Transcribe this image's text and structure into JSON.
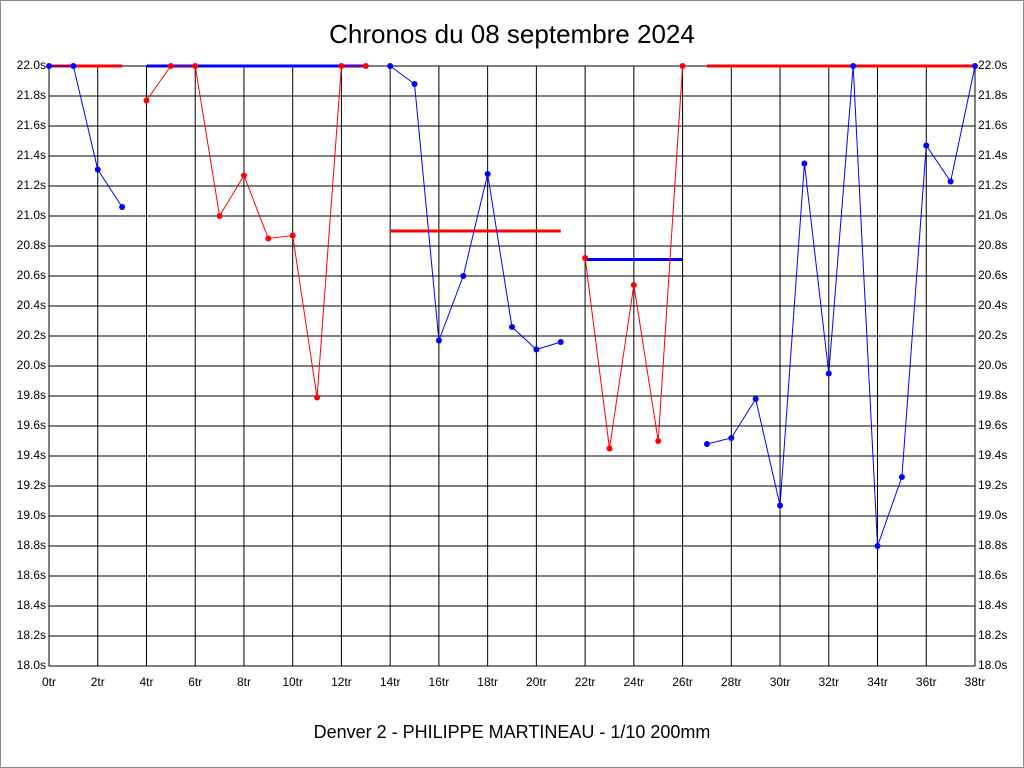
{
  "chart_data": {
    "type": "line",
    "title": "Chronos du 08 septembre 2024",
    "subtitle": "Denver 2 - PHILIPPE MARTINEAU - 1/10 200mm",
    "x": [
      0,
      1,
      2,
      3,
      4,
      5,
      6,
      7,
      8,
      9,
      10,
      11,
      12,
      13,
      14,
      15,
      16,
      17,
      18,
      19,
      20,
      21,
      22,
      23,
      24,
      25,
      26,
      27,
      28,
      29,
      30,
      31,
      32,
      33,
      34,
      35,
      36,
      37,
      38
    ],
    "xlim": [
      0,
      38
    ],
    "xticks": [
      {
        "value": 0,
        "label": "0tr"
      },
      {
        "value": 2,
        "label": "2tr"
      },
      {
        "value": 4,
        "label": "4tr"
      },
      {
        "value": 6,
        "label": "6tr"
      },
      {
        "value": 8,
        "label": "8tr"
      },
      {
        "value": 10,
        "label": "10tr"
      },
      {
        "value": 12,
        "label": "12tr"
      },
      {
        "value": 14,
        "label": "14tr"
      },
      {
        "value": 16,
        "label": "16tr"
      },
      {
        "value": 18,
        "label": "18tr"
      },
      {
        "value": 20,
        "label": "20tr"
      },
      {
        "value": 22,
        "label": "22tr"
      },
      {
        "value": 24,
        "label": "24tr"
      },
      {
        "value": 26,
        "label": "26tr"
      },
      {
        "value": 28,
        "label": "28tr"
      },
      {
        "value": 30,
        "label": "30tr"
      },
      {
        "value": 32,
        "label": "32tr"
      },
      {
        "value": 34,
        "label": "34tr"
      },
      {
        "value": 36,
        "label": "36tr"
      },
      {
        "value": 38,
        "label": "38tr"
      }
    ],
    "ylim": [
      18,
      22
    ],
    "yticks": [
      {
        "value": 18,
        "label": "18.0s"
      },
      {
        "value": 18.2,
        "label": "18.2s"
      },
      {
        "value": 18.4,
        "label": "18.4s"
      },
      {
        "value": 18.6,
        "label": "18.6s"
      },
      {
        "value": 18.8,
        "label": "18.8s"
      },
      {
        "value": 19,
        "label": "19.0s"
      },
      {
        "value": 19.2,
        "label": "19.2s"
      },
      {
        "value": 19.4,
        "label": "19.4s"
      },
      {
        "value": 19.6,
        "label": "19.6s"
      },
      {
        "value": 19.8,
        "label": "19.8s"
      },
      {
        "value": 20,
        "label": "20.0s"
      },
      {
        "value": 20.2,
        "label": "20.2s"
      },
      {
        "value": 20.4,
        "label": "20.4s"
      },
      {
        "value": 20.6,
        "label": "20.6s"
      },
      {
        "value": 20.8,
        "label": "20.8s"
      },
      {
        "value": 21,
        "label": "21.0s"
      },
      {
        "value": 21.2,
        "label": "21.2s"
      },
      {
        "value": 21.4,
        "label": "21.4s"
      },
      {
        "value": 21.6,
        "label": "21.6s"
      },
      {
        "value": 21.8,
        "label": "21.8s"
      },
      {
        "value": 22,
        "label": "22.0s"
      }
    ],
    "grid": true,
    "series": [
      {
        "color": "#0000ff",
        "values": [
          22,
          22,
          21.31,
          21.06,
          null,
          null,
          null,
          null,
          null,
          null,
          null,
          null,
          null,
          null,
          22,
          21.88,
          20.17,
          20.6,
          21.28,
          20.26,
          20.11,
          20.16,
          null,
          null,
          null,
          null,
          null,
          19.48,
          19.52,
          19.78,
          19.07,
          21.35,
          19.95,
          22,
          18.8,
          19.26,
          21.47,
          21.23,
          22
        ]
      },
      {
        "color": "#ff0000",
        "values": [
          null,
          null,
          null,
          null,
          21.77,
          22,
          22,
          21,
          21.27,
          20.85,
          20.87,
          19.79,
          22,
          22,
          null,
          null,
          null,
          null,
          null,
          null,
          null,
          null,
          20.72,
          19.45,
          20.54,
          19.5,
          22,
          null,
          null,
          null,
          null,
          null,
          null,
          null,
          null,
          null,
          null,
          null,
          null
        ]
      }
    ],
    "ref_lines": [
      {
        "color": "#ff0000",
        "xrange": [
          0,
          3
        ],
        "value": 22
      },
      {
        "color": "#0000ff",
        "xrange": [
          4,
          13
        ],
        "value": 22
      },
      {
        "color": "#ff0000",
        "xrange": [
          14,
          21
        ],
        "value": 20.9
      },
      {
        "color": "#0000ff",
        "xrange": [
          22,
          26
        ],
        "value": 20.71
      },
      {
        "color": "#ff0000",
        "xrange": [
          27,
          38
        ],
        "value": 22
      }
    ]
  }
}
